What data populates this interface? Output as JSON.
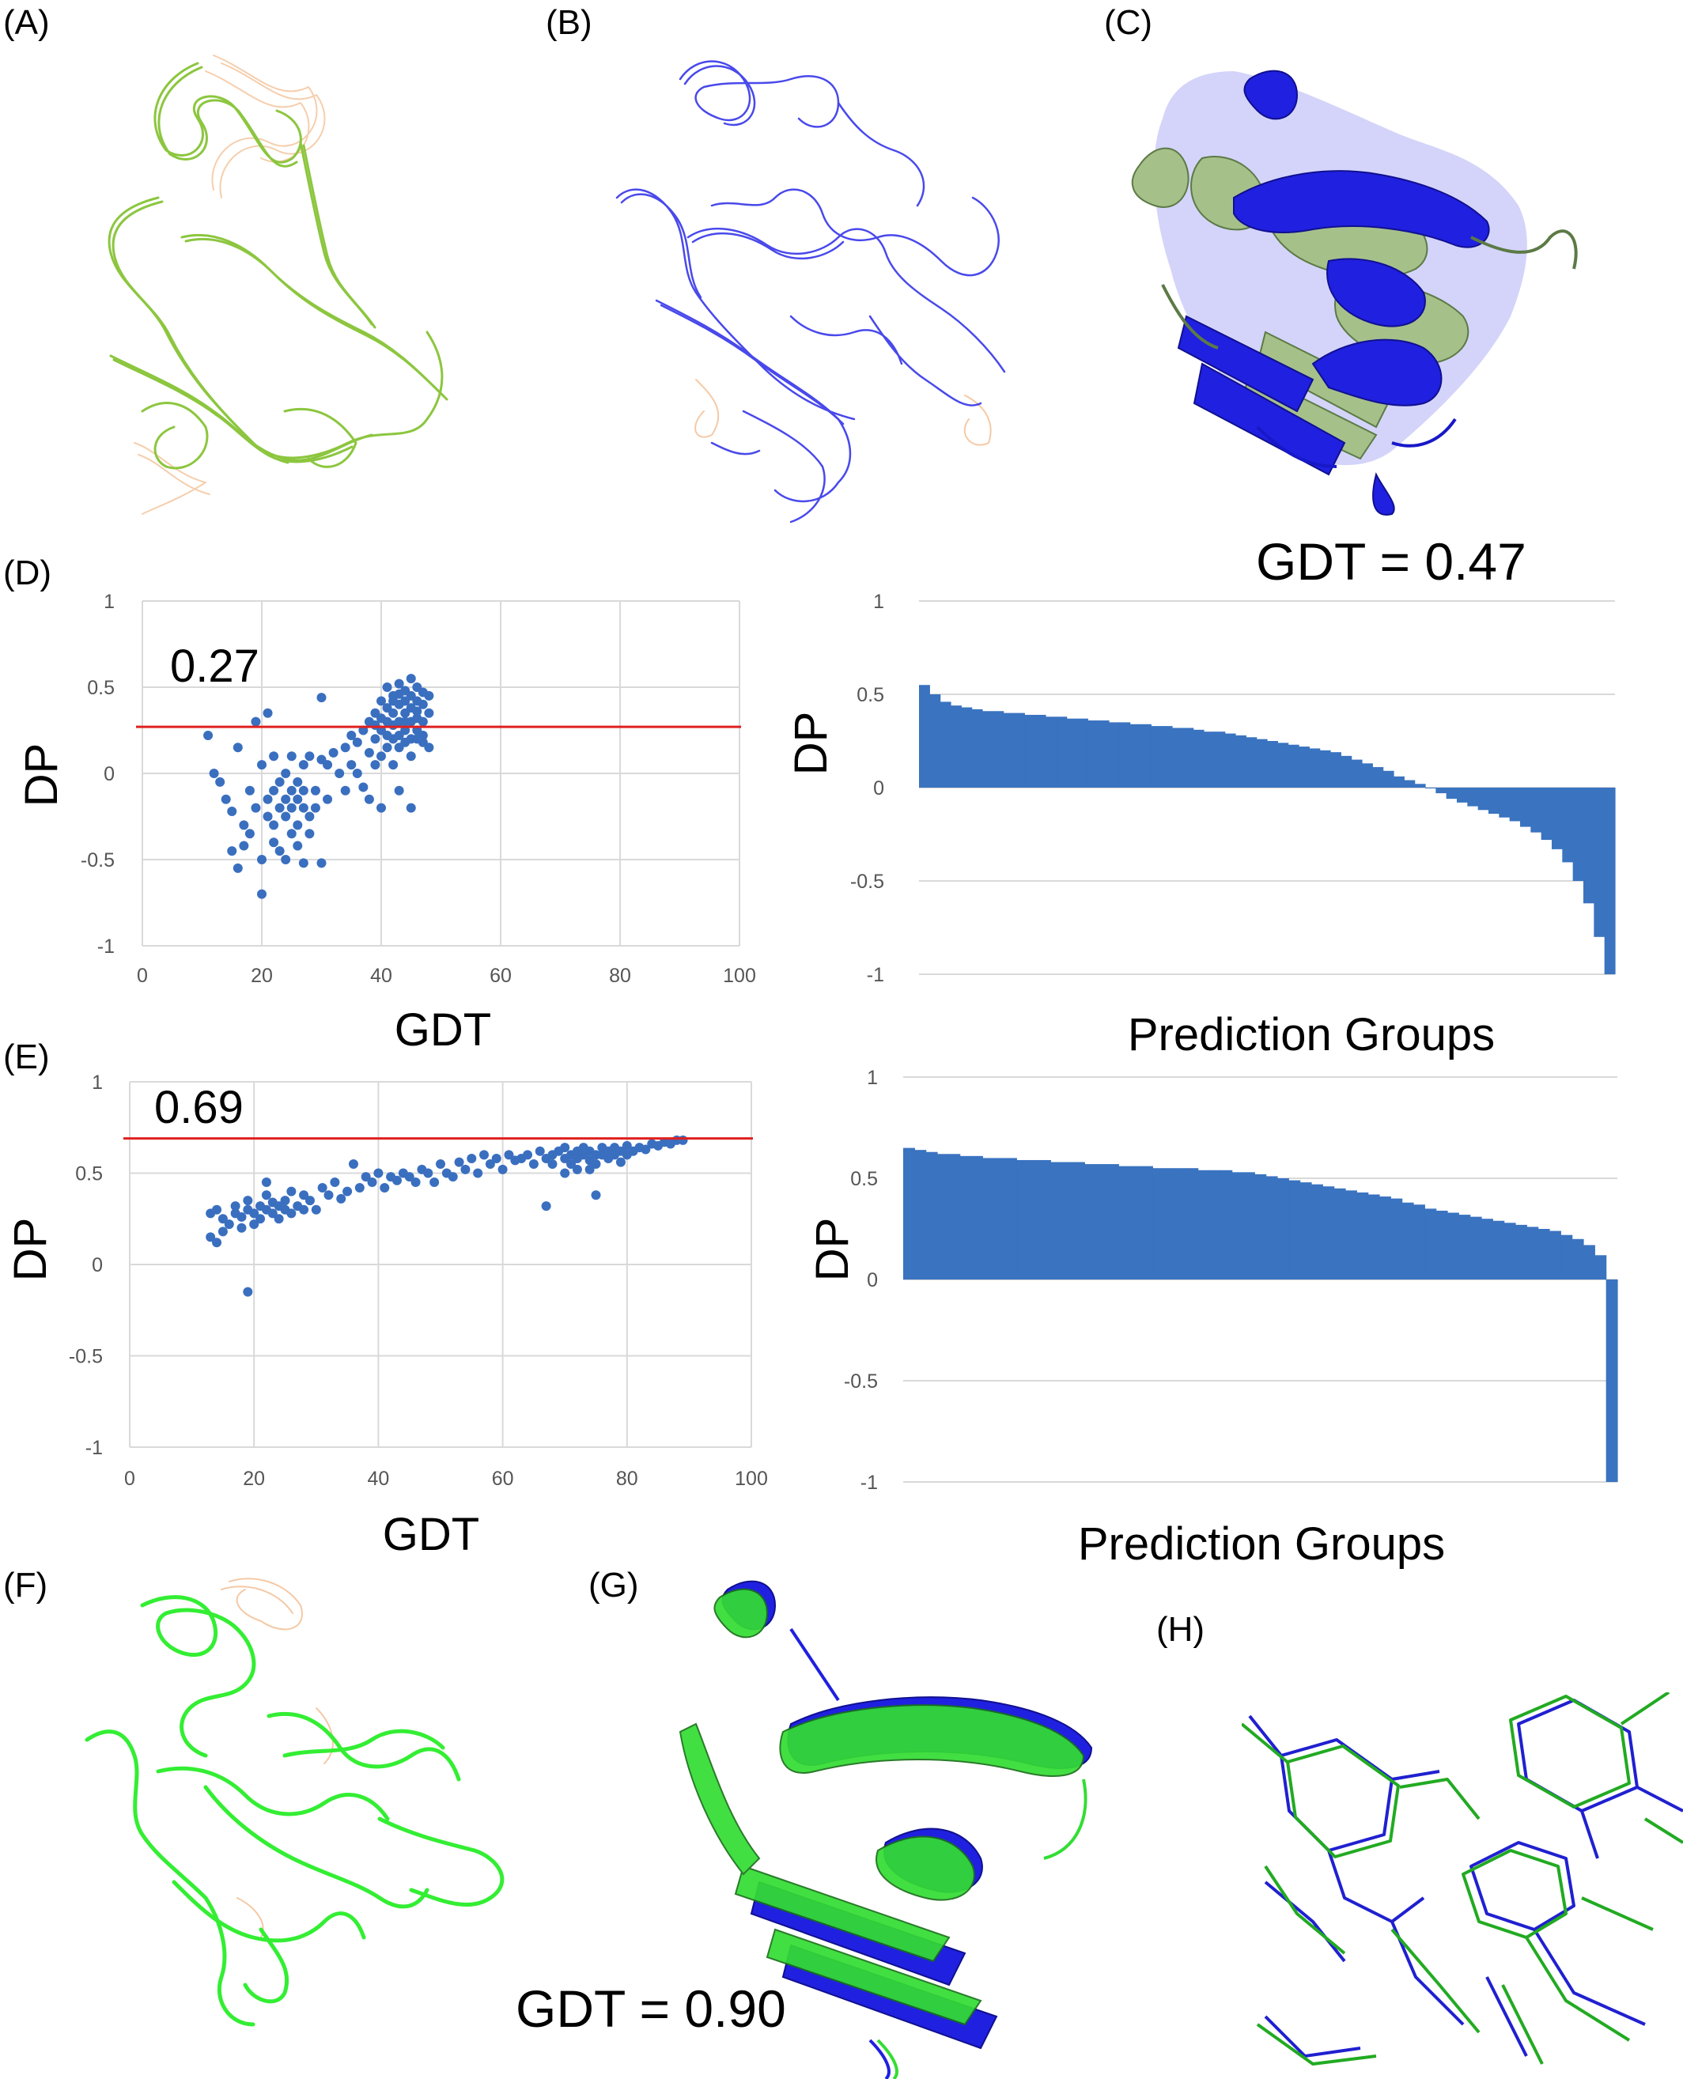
{
  "panels": {
    "A": {
      "label": "(A)"
    },
    "B": {
      "label": "(B)"
    },
    "C": {
      "label": "(C)",
      "caption": "GDT = 0.47"
    },
    "D": {
      "label": "(D)"
    },
    "E": {
      "label": "(E)"
    },
    "F": {
      "label": "(F)"
    },
    "G": {
      "label": "(G)",
      "caption": "GDT = 0.90"
    },
    "H": {
      "label": "(H)"
    }
  },
  "colors": {
    "scatter_point": "#3a6fbf",
    "bar": "#3a73c0",
    "threshold": "#e02020",
    "grid": "#d9d9d9",
    "structure_A": "#8cc63f",
    "structure_B": "#2a2ae8",
    "structure_C_green": "#a6c08a",
    "structure_F": "#33ee33",
    "loop_orange": "#f5c9a5"
  },
  "chart_data": [
    {
      "id": "D-scatter",
      "type": "scatter",
      "xlabel": "GDT",
      "ylabel": "DP",
      "xlim": [
        0,
        100
      ],
      "ylim": [
        -1,
        1
      ],
      "xticks": [
        "0",
        "20",
        "40",
        "60",
        "80",
        "100"
      ],
      "yticks": [
        "1",
        "0.5",
        "0",
        "-0.5",
        "-1"
      ],
      "grid": true,
      "threshold": {
        "value": 0.27,
        "label": "0.27"
      },
      "points": [
        [
          11,
          0.22
        ],
        [
          12,
          0.0
        ],
        [
          13,
          -0.05
        ],
        [
          14,
          -0.15
        ],
        [
          15,
          -0.22
        ],
        [
          15,
          -0.45
        ],
        [
          16,
          -0.55
        ],
        [
          16,
          0.15
        ],
        [
          17,
          -0.3
        ],
        [
          17,
          -0.42
        ],
        [
          18,
          -0.1
        ],
        [
          18,
          -0.35
        ],
        [
          19,
          0.3
        ],
        [
          19,
          -0.2
        ],
        [
          20,
          -0.7
        ],
        [
          20,
          -0.5
        ],
        [
          20,
          0.05
        ],
        [
          21,
          -0.15
        ],
        [
          21,
          -0.25
        ],
        [
          21,
          0.35
        ],
        [
          22,
          -0.1
        ],
        [
          22,
          -0.3
        ],
        [
          22,
          -0.4
        ],
        [
          22,
          0.1
        ],
        [
          23,
          -0.2
        ],
        [
          23,
          -0.05
        ],
        [
          23,
          -0.45
        ],
        [
          24,
          -0.15
        ],
        [
          24,
          -0.25
        ],
        [
          24,
          0.0
        ],
        [
          24,
          -0.5
        ],
        [
          25,
          -0.1
        ],
        [
          25,
          -0.2
        ],
        [
          25,
          -0.35
        ],
        [
          25,
          0.1
        ],
        [
          26,
          -0.15
        ],
        [
          26,
          -0.3
        ],
        [
          26,
          -0.05
        ],
        [
          26,
          -0.42
        ],
        [
          27,
          -0.2
        ],
        [
          27,
          -0.1
        ],
        [
          27,
          0.05
        ],
        [
          27,
          -0.52
        ],
        [
          28,
          -0.25
        ],
        [
          28,
          0.1
        ],
        [
          28,
          -0.35
        ],
        [
          29,
          -0.1
        ],
        [
          29,
          -0.2
        ],
        [
          30,
          0.44
        ],
        [
          30,
          -0.52
        ],
        [
          30,
          0.08
        ],
        [
          31,
          0.05
        ],
        [
          31,
          -0.15
        ],
        [
          32,
          0.12
        ],
        [
          33,
          0.0
        ],
        [
          34,
          0.15
        ],
        [
          34,
          -0.1
        ],
        [
          35,
          0.22
        ],
        [
          35,
          0.05
        ],
        [
          36,
          0.18
        ],
        [
          36,
          0.0
        ],
        [
          37,
          0.25
        ],
        [
          37,
          -0.08
        ],
        [
          38,
          0.3
        ],
        [
          38,
          0.12
        ],
        [
          38,
          -0.15
        ],
        [
          39,
          0.2
        ],
        [
          39,
          0.35
        ],
        [
          39,
          0.05
        ],
        [
          40,
          0.42
        ],
        [
          40,
          0.25
        ],
        [
          40,
          0.1
        ],
        [
          40,
          -0.2
        ],
        [
          41,
          0.5
        ],
        [
          41,
          0.3
        ],
        [
          41,
          0.15
        ],
        [
          41,
          0.38
        ],
        [
          42,
          0.45
        ],
        [
          42,
          0.28
        ],
        [
          42,
          0.2
        ],
        [
          42,
          0.35
        ],
        [
          42,
          0.05
        ],
        [
          43,
          0.52
        ],
        [
          43,
          0.4
        ],
        [
          43,
          0.3
        ],
        [
          43,
          0.22
        ],
        [
          43,
          0.15
        ],
        [
          43,
          -0.1
        ],
        [
          44,
          0.48
        ],
        [
          44,
          0.35
        ],
        [
          44,
          0.25
        ],
        [
          44,
          0.42
        ],
        [
          44,
          0.18
        ],
        [
          45,
          0.55
        ],
        [
          45,
          0.45
        ],
        [
          45,
          0.3
        ],
        [
          45,
          0.38
        ],
        [
          45,
          0.2
        ],
        [
          45,
          0.1
        ],
        [
          45,
          -0.2
        ],
        [
          46,
          0.5
        ],
        [
          46,
          0.42
        ],
        [
          46,
          0.32
        ],
        [
          46,
          0.25
        ],
        [
          46,
          0.36
        ],
        [
          47,
          0.47
        ],
        [
          47,
          0.3
        ],
        [
          47,
          0.4
        ],
        [
          47,
          0.18
        ],
        [
          48,
          0.35
        ],
        [
          48,
          0.15
        ],
        [
          48,
          0.45
        ],
        [
          42,
          0.42
        ],
        [
          43,
          0.46
        ],
        [
          44,
          0.3
        ],
        [
          41,
          0.22
        ],
        [
          40,
          0.32
        ],
        [
          39,
          0.28
        ],
        [
          46,
          0.2
        ],
        [
          47,
          0.22
        ]
      ]
    },
    {
      "id": "D-bars",
      "type": "bar",
      "xlabel": "Prediction Groups",
      "ylabel": "DP",
      "ylim": [
        -1,
        1
      ],
      "yticks": [
        "1",
        "0.5",
        "0",
        "-0.5",
        "-1"
      ],
      "grid": true,
      "values": [
        0.55,
        0.5,
        0.46,
        0.44,
        0.43,
        0.42,
        0.41,
        0.41,
        0.4,
        0.4,
        0.39,
        0.39,
        0.38,
        0.38,
        0.37,
        0.37,
        0.36,
        0.36,
        0.35,
        0.35,
        0.34,
        0.34,
        0.33,
        0.33,
        0.32,
        0.32,
        0.31,
        0.3,
        0.3,
        0.29,
        0.28,
        0.27,
        0.26,
        0.25,
        0.24,
        0.23,
        0.22,
        0.21,
        0.2,
        0.19,
        0.17,
        0.15,
        0.13,
        0.11,
        0.09,
        0.06,
        0.04,
        0.02,
        0.0,
        -0.03,
        -0.06,
        -0.08,
        -0.1,
        -0.12,
        -0.14,
        -0.16,
        -0.18,
        -0.21,
        -0.24,
        -0.28,
        -0.33,
        -0.4,
        -0.5,
        -0.62,
        -0.8,
        -1.0
      ]
    },
    {
      "id": "E-scatter",
      "type": "scatter",
      "xlabel": "GDT",
      "ylabel": "DP",
      "xlim": [
        0,
        100
      ],
      "ylim": [
        -1,
        1
      ],
      "xticks": [
        "0",
        "20",
        "40",
        "60",
        "80",
        "100"
      ],
      "yticks": [
        "1",
        "0.5",
        "0",
        "-0.5",
        "-1"
      ],
      "grid": true,
      "threshold": {
        "value": 0.69,
        "label": "0.69"
      },
      "points": [
        [
          13,
          0.28
        ],
        [
          13,
          0.15
        ],
        [
          14,
          0.12
        ],
        [
          14,
          0.3
        ],
        [
          15,
          0.25
        ],
        [
          15,
          0.18
        ],
        [
          16,
          0.22
        ],
        [
          17,
          0.28
        ],
        [
          17,
          0.32
        ],
        [
          18,
          0.26
        ],
        [
          18,
          0.2
        ],
        [
          19,
          0.3
        ],
        [
          19,
          0.35
        ],
        [
          19,
          -0.15
        ],
        [
          20,
          0.22
        ],
        [
          20,
          0.28
        ],
        [
          21,
          0.32
        ],
        [
          21,
          0.25
        ],
        [
          22,
          0.38
        ],
        [
          22,
          0.3
        ],
        [
          22,
          0.45
        ],
        [
          23,
          0.28
        ],
        [
          23,
          0.34
        ],
        [
          24,
          0.25
        ],
        [
          24,
          0.32
        ],
        [
          25,
          0.3
        ],
        [
          25,
          0.35
        ],
        [
          26,
          0.28
        ],
        [
          26,
          0.4
        ],
        [
          27,
          0.32
        ],
        [
          28,
          0.3
        ],
        [
          28,
          0.38
        ],
        [
          29,
          0.35
        ],
        [
          30,
          0.3
        ],
        [
          31,
          0.42
        ],
        [
          32,
          0.38
        ],
        [
          33,
          0.45
        ],
        [
          34,
          0.36
        ],
        [
          35,
          0.4
        ],
        [
          36,
          0.55
        ],
        [
          37,
          0.42
        ],
        [
          38,
          0.48
        ],
        [
          39,
          0.45
        ],
        [
          40,
          0.5
        ],
        [
          41,
          0.42
        ],
        [
          42,
          0.48
        ],
        [
          43,
          0.46
        ],
        [
          44,
          0.5
        ],
        [
          45,
          0.48
        ],
        [
          46,
          0.45
        ],
        [
          47,
          0.52
        ],
        [
          48,
          0.5
        ],
        [
          49,
          0.45
        ],
        [
          50,
          0.55
        ],
        [
          51,
          0.5
        ],
        [
          52,
          0.48
        ],
        [
          53,
          0.56
        ],
        [
          54,
          0.52
        ],
        [
          55,
          0.58
        ],
        [
          56,
          0.5
        ],
        [
          57,
          0.6
        ],
        [
          58,
          0.55
        ],
        [
          59,
          0.58
        ],
        [
          60,
          0.52
        ],
        [
          61,
          0.6
        ],
        [
          62,
          0.57
        ],
        [
          63,
          0.58
        ],
        [
          64,
          0.6
        ],
        [
          65,
          0.55
        ],
        [
          66,
          0.62
        ],
        [
          67,
          0.58
        ],
        [
          67,
          0.32
        ],
        [
          68,
          0.6
        ],
        [
          68,
          0.55
        ],
        [
          69,
          0.62
        ],
        [
          70,
          0.58
        ],
        [
          70,
          0.64
        ],
        [
          71,
          0.6
        ],
        [
          71,
          0.55
        ],
        [
          72,
          0.62
        ],
        [
          72,
          0.58
        ],
        [
          73,
          0.64
        ],
        [
          73,
          0.6
        ],
        [
          74,
          0.57
        ],
        [
          74,
          0.62
        ],
        [
          75,
          0.6
        ],
        [
          75,
          0.55
        ],
        [
          75,
          0.38
        ],
        [
          76,
          0.64
        ],
        [
          76,
          0.6
        ],
        [
          77,
          0.58
        ],
        [
          77,
          0.62
        ],
        [
          78,
          0.6
        ],
        [
          78,
          0.64
        ],
        [
          79,
          0.62
        ],
        [
          80,
          0.6
        ],
        [
          80,
          0.65
        ],
        [
          81,
          0.62
        ],
        [
          82,
          0.64
        ],
        [
          83,
          0.63
        ],
        [
          84,
          0.66
        ],
        [
          85,
          0.65
        ],
        [
          86,
          0.67
        ],
        [
          87,
          0.66
        ],
        [
          88,
          0.68
        ],
        [
          89,
          0.68
        ],
        [
          72,
          0.52
        ],
        [
          79,
          0.56
        ],
        [
          70,
          0.5
        ],
        [
          74,
          0.52
        ]
      ]
    },
    {
      "id": "E-bars",
      "type": "bar",
      "xlabel": "Prediction Groups",
      "ylabel": "DP",
      "ylim": [
        -1,
        1
      ],
      "yticks": [
        "1",
        "0.5",
        "0",
        "-0.5",
        "-1"
      ],
      "grid": true,
      "values": [
        0.65,
        0.64,
        0.63,
        0.62,
        0.62,
        0.61,
        0.61,
        0.6,
        0.6,
        0.6,
        0.59,
        0.59,
        0.59,
        0.58,
        0.58,
        0.58,
        0.57,
        0.57,
        0.57,
        0.56,
        0.56,
        0.56,
        0.55,
        0.55,
        0.55,
        0.55,
        0.54,
        0.54,
        0.54,
        0.53,
        0.53,
        0.52,
        0.51,
        0.5,
        0.49,
        0.48,
        0.47,
        0.46,
        0.45,
        0.44,
        0.43,
        0.42,
        0.41,
        0.4,
        0.38,
        0.37,
        0.35,
        0.34,
        0.33,
        0.32,
        0.31,
        0.3,
        0.29,
        0.28,
        0.27,
        0.26,
        0.25,
        0.24,
        0.22,
        0.2,
        0.17,
        0.12,
        -1.0
      ]
    }
  ]
}
